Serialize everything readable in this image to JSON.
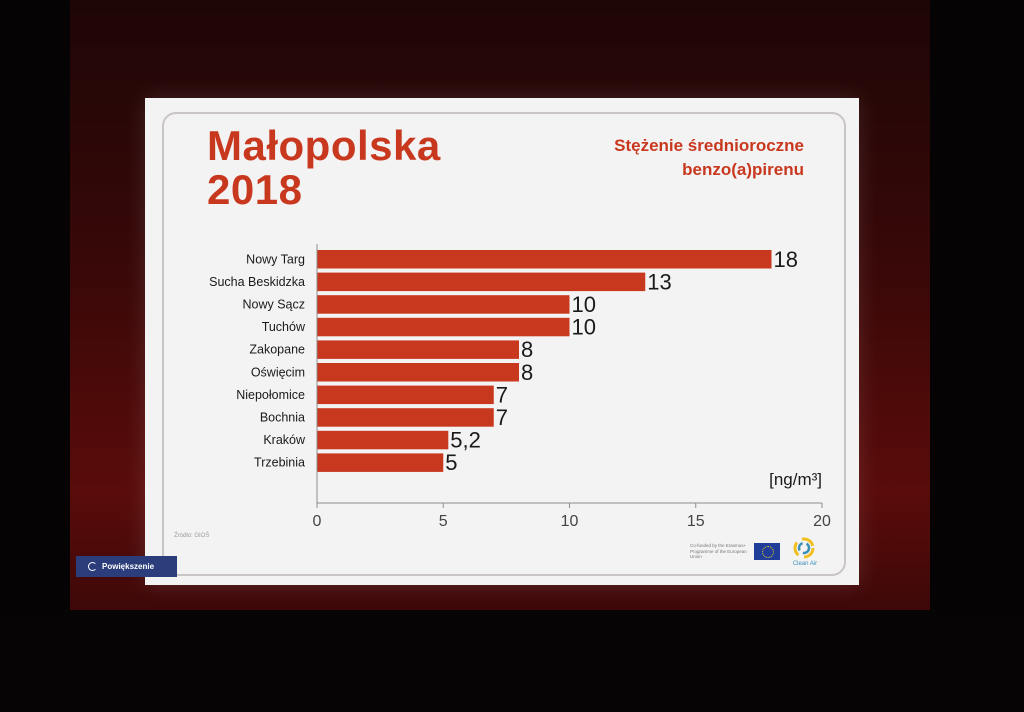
{
  "slide": {
    "title_line1": "Małopolska",
    "title_line2": "2018",
    "subtitle_line1": "Stężenie średnioroczne",
    "subtitle_line2": "benzo(a)pirenu",
    "source": "Źródło: GIOŚ",
    "fund_text": "Co-funded by the Erasmus+ Programme of the European Union",
    "logo_text": "Clean Air"
  },
  "overlay": {
    "zoom_button_label": "Powiększenie"
  },
  "colors": {
    "bar": "#c8381e",
    "title": "#c8381e",
    "text": "#1a1a1a",
    "axis": "#8c8c8c"
  },
  "chart_data": {
    "type": "bar",
    "orientation": "horizontal",
    "categories": [
      "Nowy Targ",
      "Sucha Beskidzka",
      "Nowy Sącz",
      "Tuchów",
      "Zakopane",
      "Oświęcim",
      "Niepołomice",
      "Bochnia",
      "Kraków",
      "Trzebinia"
    ],
    "values": [
      18,
      13,
      10,
      10,
      8,
      8,
      7,
      7,
      5.2,
      5
    ],
    "value_labels": [
      "18",
      "13",
      "10",
      "10",
      "8",
      "8",
      "7",
      "7",
      "5,2",
      "5"
    ],
    "xlim": [
      0,
      20
    ],
    "xticks": [
      "0",
      "5",
      "10",
      "15",
      "20"
    ],
    "unit_label": "[ng/m³]",
    "grid": false
  }
}
